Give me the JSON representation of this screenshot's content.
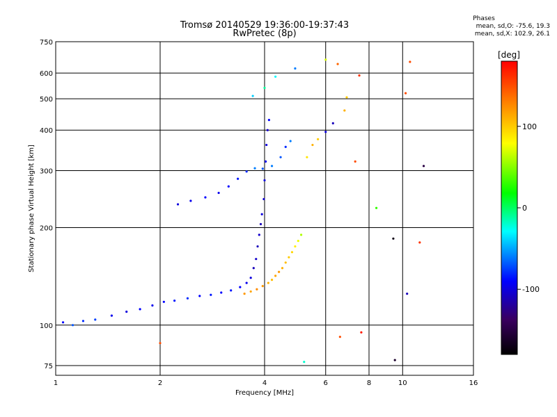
{
  "chart_data": {
    "type": "scatter",
    "title": "Tromsø 20140529 19:36:00-19:37:43",
    "subtitle": "RwPretec (8p)",
    "xlabel": "Frequency [MHz]",
    "ylabel": "Stationary phase Virtual Height [km]",
    "xscale": "log",
    "yscale": "log",
    "xlim": [
      1,
      16
    ],
    "ylim": [
      70,
      750
    ],
    "xticks": [
      1,
      2,
      4,
      6,
      8,
      10,
      16
    ],
    "xtick_labels": [
      "1",
      "2",
      "4",
      "6",
      "8",
      "10",
      "16"
    ],
    "yticks": [
      75,
      100,
      200,
      300,
      400,
      500,
      600,
      750
    ],
    "ytick_labels": [
      "75",
      "100",
      "200",
      "300",
      "400",
      "500",
      "600",
      "750"
    ],
    "grid": true,
    "colorbar": {
      "label": "[deg]",
      "range": [
        -180,
        180
      ],
      "ticks": [
        -100,
        0,
        100
      ],
      "tick_labels": [
        "-100",
        "0",
        "100"
      ]
    },
    "stats_block": {
      "heading": "Phases",
      "line1": "mean, sd,O: -75.6, 19.3",
      "line2": "mean, sd,X: 102.9, 26.1"
    },
    "series": [
      {
        "values": [
          [
            1.05,
            102,
            -90
          ],
          [
            1.12,
            100,
            -70
          ],
          [
            1.2,
            103,
            -80
          ],
          [
            1.3,
            104,
            -75
          ],
          [
            1.45,
            107,
            -95
          ],
          [
            1.6,
            110,
            -100
          ],
          [
            1.75,
            112,
            -90
          ],
          [
            1.9,
            115,
            -95
          ],
          [
            2.05,
            118,
            -90
          ],
          [
            2.2,
            119,
            -85
          ],
          [
            2.4,
            121,
            -80
          ],
          [
            2.6,
            123,
            -90
          ],
          [
            2.8,
            124,
            -85
          ],
          [
            3.0,
            126,
            -90
          ],
          [
            3.2,
            128,
            -85
          ],
          [
            3.4,
            131,
            -90
          ],
          [
            3.55,
            135,
            -95
          ],
          [
            3.65,
            140,
            -100
          ],
          [
            3.72,
            150,
            -110
          ],
          [
            3.78,
            160,
            -105
          ],
          [
            3.82,
            175,
            -110
          ],
          [
            3.86,
            190,
            -105
          ],
          [
            3.9,
            205,
            -110
          ],
          [
            3.93,
            220,
            -100
          ],
          [
            3.98,
            245,
            -105
          ],
          [
            4.0,
            280,
            -100
          ],
          [
            4.03,
            320,
            -95
          ],
          [
            4.05,
            360,
            -100
          ],
          [
            4.08,
            400,
            -105
          ],
          [
            4.12,
            430,
            -90
          ]
        ]
      },
      {
        "values": [
          [
            3.5,
            125,
            120
          ],
          [
            3.65,
            127,
            115
          ],
          [
            3.8,
            129,
            125
          ],
          [
            3.95,
            132,
            120
          ],
          [
            4.1,
            135,
            110
          ],
          [
            4.2,
            138,
            105
          ],
          [
            4.3,
            142,
            115
          ],
          [
            4.4,
            146,
            120
          ],
          [
            4.5,
            150,
            110
          ],
          [
            4.6,
            156,
            105
          ],
          [
            4.7,
            162,
            100
          ],
          [
            4.8,
            168,
            95
          ],
          [
            4.9,
            175,
            85
          ],
          [
            5.0,
            182,
            75
          ],
          [
            5.1,
            190,
            60
          ]
        ]
      },
      {
        "values": [
          [
            2.25,
            236,
            -100
          ],
          [
            2.45,
            242,
            -95
          ],
          [
            2.7,
            248,
            -90
          ],
          [
            2.95,
            256,
            -95
          ],
          [
            3.15,
            268,
            -90
          ],
          [
            3.35,
            283,
            -85
          ],
          [
            3.55,
            298,
            -80
          ],
          [
            3.75,
            305,
            -60
          ],
          [
            3.95,
            304,
            -70
          ],
          [
            4.2,
            310,
            -60
          ],
          [
            4.45,
            330,
            -70
          ],
          [
            4.6,
            355,
            -80
          ],
          [
            4.75,
            370,
            -60
          ],
          [
            5.3,
            330,
            90
          ],
          [
            5.5,
            360,
            110
          ],
          [
            5.7,
            375,
            100
          ],
          [
            6.0,
            395,
            -100
          ],
          [
            6.3,
            420,
            -110
          ],
          [
            6.8,
            460,
            110
          ],
          [
            6.9,
            505,
            100
          ]
        ]
      },
      {
        "values": [
          [
            3.7,
            510,
            -40
          ],
          [
            4.0,
            540,
            -10
          ],
          [
            4.3,
            585,
            -30
          ],
          [
            4.9,
            620,
            -60
          ],
          [
            6.0,
            660,
            70
          ],
          [
            6.5,
            640,
            140
          ],
          [
            7.5,
            590,
            160
          ],
          [
            10.5,
            650,
            150
          ],
          [
            10.2,
            520,
            150
          ],
          [
            11.5,
            310,
            -150
          ],
          [
            11.2,
            180,
            160
          ],
          [
            10.3,
            125,
            -110
          ],
          [
            7.6,
            95,
            170
          ],
          [
            6.6,
            92,
            150
          ],
          [
            9.5,
            78,
            -160
          ],
          [
            5.2,
            77,
            -20
          ],
          [
            2.0,
            88,
            150
          ],
          [
            8.4,
            230,
            30
          ],
          [
            9.4,
            185,
            -170
          ],
          [
            7.3,
            320,
            150
          ]
        ]
      }
    ]
  }
}
